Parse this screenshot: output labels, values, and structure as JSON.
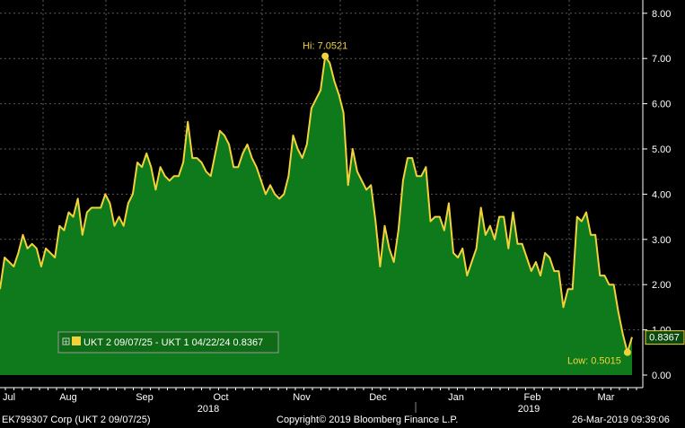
{
  "footer": {
    "security": "EK799307 Corp (UKT 2 09/07/25)",
    "copyright": "Copyright© 2019 Bloomberg Finance L.P.",
    "timestamp": "26-Mar-2019 09:39:06"
  },
  "colors": {
    "background": "#000000",
    "area_fill": "#0f7a1b",
    "line": "#f2d23b",
    "grid": "#5a5a5a",
    "text": "#ffffff",
    "legend_bg": "#0f6b16"
  },
  "chart_data": {
    "type": "area",
    "title": "",
    "xlabel": "",
    "ylabel": "",
    "ylim": [
      0,
      8
    ],
    "y_ticks": [
      "0.00",
      "1.00",
      "2.00",
      "3.00",
      "4.00",
      "5.00",
      "6.00",
      "7.00",
      "8.00"
    ],
    "x_month_labels": [
      "Jul",
      "Aug",
      "Sep",
      "Oct",
      "Nov",
      "Dec",
      "Jan",
      "Feb",
      "Mar"
    ],
    "x_year_labels": [
      "2018",
      "2019"
    ],
    "grid": true,
    "series": [
      {
        "name": "UKT 2 09/07/25 - UKT 1 04/22/24",
        "last_value": "0.8367",
        "values": [
          1.9,
          2.6,
          2.5,
          2.4,
          2.7,
          3.1,
          2.8,
          2.9,
          2.8,
          2.4,
          2.8,
          2.7,
          2.6,
          3.3,
          3.2,
          3.6,
          3.5,
          3.9,
          3.1,
          3.6,
          3.7,
          3.7,
          3.7,
          4.0,
          3.8,
          3.3,
          3.5,
          3.3,
          3.8,
          4.0,
          4.7,
          4.6,
          4.9,
          4.6,
          4.1,
          4.6,
          4.4,
          4.3,
          4.4,
          4.4,
          4.7,
          5.6,
          4.8,
          4.8,
          4.7,
          4.5,
          4.4,
          4.9,
          5.4,
          5.3,
          5.1,
          4.6,
          4.6,
          4.9,
          5.1,
          4.8,
          4.6,
          4.3,
          4.0,
          4.2,
          4.0,
          3.9,
          4.0,
          4.4,
          5.3,
          5.0,
          4.8,
          5.1,
          5.9,
          6.1,
          6.3,
          7.05,
          6.9,
          6.5,
          6.2,
          5.8,
          4.2,
          5.0,
          4.5,
          4.3,
          4.1,
          4.2,
          3.4,
          2.4,
          3.3,
          2.8,
          2.5,
          3.2,
          4.3,
          4.8,
          4.8,
          4.4,
          4.4,
          4.6,
          3.4,
          3.5,
          3.5,
          3.2,
          3.8,
          2.7,
          2.6,
          2.8,
          2.2,
          2.5,
          2.8,
          3.7,
          3.1,
          3.3,
          3.0,
          3.5,
          3.5,
          2.8,
          3.6,
          2.9,
          2.9,
          2.6,
          2.3,
          2.5,
          2.2,
          2.7,
          2.6,
          2.3,
          2.3,
          1.5,
          1.9,
          1.9,
          3.5,
          3.4,
          3.6,
          3.1,
          3.1,
          2.2,
          2.2,
          2.0,
          2.0,
          1.4,
          0.9,
          0.5015,
          0.84
        ]
      }
    ],
    "annotations": {
      "high": {
        "label": "Hi: 7.0521",
        "value": 7.0521
      },
      "low": {
        "label": "Low: 0.5015",
        "value": 0.5015
      }
    },
    "legend": {
      "placement": "bottom-left",
      "text": "UKT 2 09/07/25 - UKT 1 04/22/24 0.8367"
    }
  }
}
